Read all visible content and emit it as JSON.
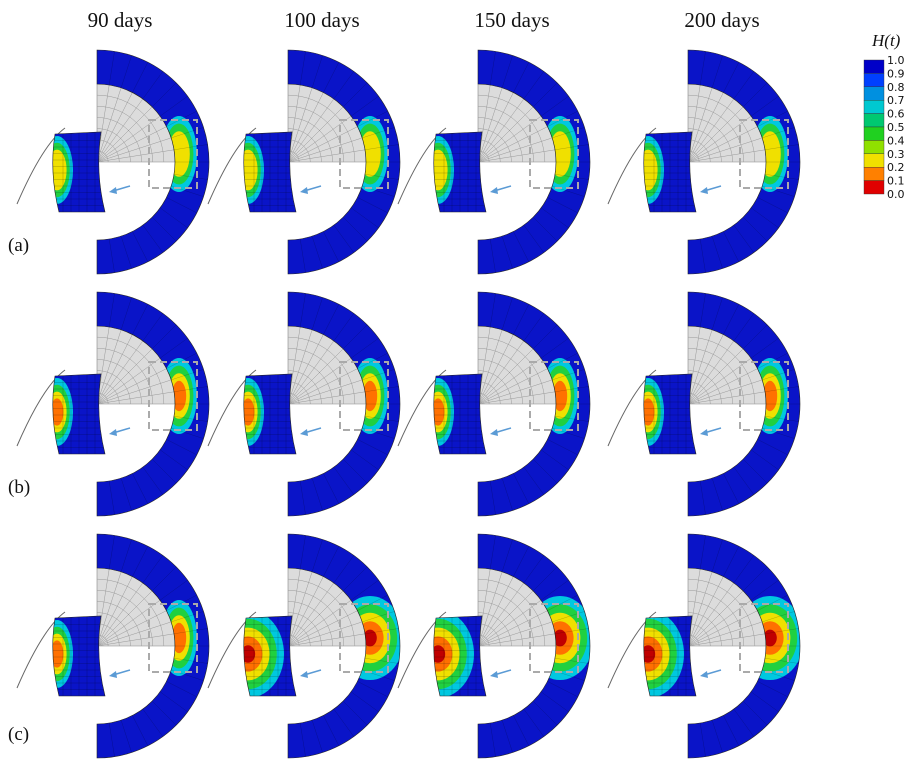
{
  "columns": [
    "90 days",
    "100 days",
    "150 days",
    "200 days"
  ],
  "rows": [
    "(a)",
    "(b)",
    "(c)"
  ],
  "colorbar": {
    "title": "H(t)",
    "labels": [
      "1.0",
      "0.9",
      "0.8",
      "0.7",
      "0.6",
      "0.5",
      "0.4",
      "0.3",
      "0.2",
      "0.1",
      "0.0"
    ]
  }
}
